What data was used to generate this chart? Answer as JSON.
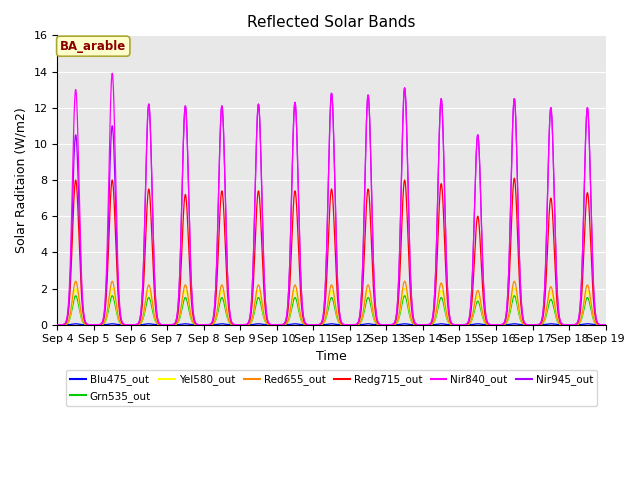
{
  "title": "Reflected Solar Bands",
  "xlabel": "Time",
  "ylabel": "Solar Raditaion (W/m2)",
  "annotation": "BA_arable",
  "ylim": [
    0,
    16
  ],
  "ndays": 15,
  "xtick_labels": [
    "Sep 4",
    "Sep 5",
    "Sep 6",
    "Sep 7",
    "Sep 8",
    "Sep 9",
    "Sep 10",
    "Sep 11",
    "Sep 12",
    "Sep 13",
    "Sep 14",
    "Sep 15",
    "Sep 16",
    "Sep 17",
    "Sep 18",
    "Sep 19"
  ],
  "colors": {
    "Blu475_out": "#0000ff",
    "Grn535_out": "#00cc00",
    "Yel580_out": "#ffff00",
    "Red655_out": "#ff8800",
    "Redg715_out": "#ff0000",
    "Nir840_out": "#ff00ff",
    "Nir945_out": "#aa00ff"
  },
  "nir840_peaks": [
    13.0,
    13.9,
    12.2,
    12.1,
    12.1,
    12.2,
    12.3,
    12.8,
    12.7,
    13.1,
    12.5,
    10.5,
    12.5,
    12.0,
    12.0
  ],
  "nir945_peaks": [
    10.5,
    11.0,
    12.2,
    12.1,
    12.1,
    12.2,
    12.3,
    12.8,
    12.7,
    13.1,
    12.5,
    10.5,
    12.5,
    12.0,
    12.0
  ],
  "redg715_peaks": [
    8.0,
    8.0,
    7.5,
    7.2,
    7.4,
    7.4,
    7.4,
    7.5,
    7.5,
    8.0,
    7.8,
    6.0,
    8.1,
    7.0,
    7.3
  ],
  "red655_peaks": [
    2.4,
    2.4,
    2.2,
    2.2,
    2.2,
    2.2,
    2.2,
    2.2,
    2.2,
    2.4,
    2.3,
    1.9,
    2.4,
    2.1,
    2.2
  ],
  "yel580_peaks": [
    2.0,
    2.0,
    1.9,
    1.9,
    1.9,
    1.9,
    1.9,
    1.9,
    1.9,
    2.0,
    1.9,
    1.6,
    2.0,
    1.8,
    1.9
  ],
  "grn535_peaks": [
    1.6,
    1.6,
    1.5,
    1.5,
    1.5,
    1.5,
    1.5,
    1.5,
    1.5,
    1.6,
    1.5,
    1.3,
    1.6,
    1.4,
    1.5
  ],
  "blu475_peaks": [
    0.05,
    0.05,
    0.05,
    0.05,
    0.05,
    0.05,
    0.05,
    0.05,
    0.05,
    0.05,
    0.05,
    0.05,
    0.05,
    0.05,
    0.05
  ],
  "title_fontsize": 11,
  "tick_fontsize": 8,
  "label_fontsize": 9
}
